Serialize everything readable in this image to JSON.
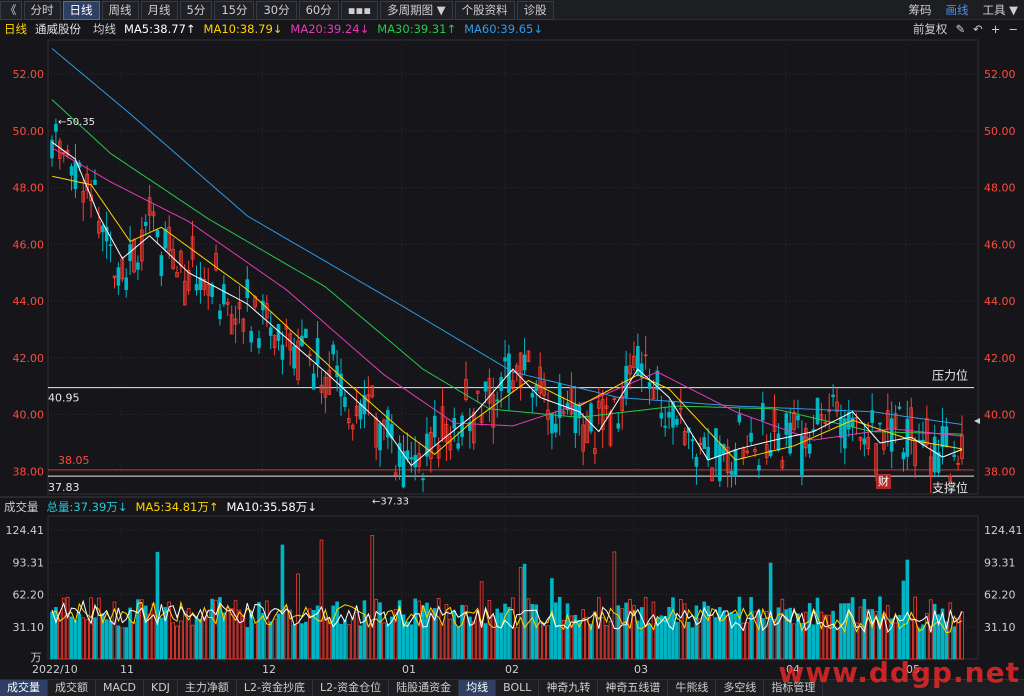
{
  "toolbar": {
    "back": "《",
    "tabs": [
      "分时",
      "日线",
      "周线",
      "月线",
      "5分",
      "15分",
      "30分",
      "60分",
      "▪▪▪",
      "多周期图 ▼",
      "个股资料",
      "诊股"
    ],
    "active_tab": 1,
    "right_items": [
      "筹码",
      "画线",
      "工具 ▼"
    ],
    "right_active": 1
  },
  "legend": {
    "period": "日线",
    "stock": "通威股份",
    "ma_label": "均线",
    "ma5": "MA5:38.77↑",
    "ma10": "MA10:38.79↓",
    "ma20": "MA20:39.24↓",
    "ma30": "MA30:39.31↑",
    "ma60": "MA60:39.65↓",
    "fq": "前复权",
    "icons": [
      "✎",
      "↶",
      "+",
      "−"
    ]
  },
  "volume_legend": {
    "title": "成交量",
    "total": "总量:37.39万↓",
    "ma5": "MA5:34.81万↑",
    "ma10": "MA10:35.58万↓"
  },
  "bottom_tabs": [
    "成交量",
    "成交额",
    "MACD",
    "KDJ",
    "主力净额",
    "L2-资金抄底",
    "L2-资金仓位",
    "陆股通资金",
    "均线",
    "BOLL",
    "神奇九转",
    "神奇五线谱",
    "牛熊线",
    "多空线",
    "指标管理"
  ],
  "bottom_active": [
    0,
    8
  ],
  "badge": "财",
  "watermark": "www.ddgp.net",
  "colors": {
    "up": "#ff3b30",
    "down": "#00b5c4",
    "ma5": "#ffffff",
    "ma10": "#ffd400",
    "ma20": "#e63ab7",
    "ma30": "#26c949",
    "ma60": "#2e9be8"
  },
  "chart_data": {
    "type": "candlestick",
    "price_axis": {
      "ticks": [
        38,
        40,
        42,
        44,
        46,
        48,
        50,
        52
      ],
      "labels": [
        "38.00",
        "40.00",
        "42.00",
        "44.00",
        "46.00",
        "48.00",
        "50.00",
        "52.00"
      ],
      "range": [
        37.2,
        53.2
      ]
    },
    "volume_axis": {
      "ticks": [
        31.1,
        62.2,
        93.31,
        124.41
      ],
      "labels": [
        "31.10",
        "62.20",
        "93.31",
        "124.41"
      ],
      "unit": "万"
    },
    "x_labels": [
      "2022/10",
      "11",
      "12",
      "01",
      "02",
      "03",
      "04",
      "05"
    ],
    "annotations": {
      "high": "50.35",
      "low": "37.33"
    },
    "hlines": [
      {
        "value": 40.95,
        "label": "40.95",
        "right_label": "压力位"
      },
      {
        "value": 38.05,
        "label": "38.05"
      },
      {
        "value": 37.83,
        "label": "37.83",
        "right_label": "支撑位"
      }
    ],
    "ma_anchors": {
      "ma60": [
        [
          0,
          52.9
        ],
        [
          20,
          50.6
        ],
        [
          50,
          47.0
        ],
        [
          90,
          43.8
        ],
        [
          118,
          41.5
        ],
        [
          145,
          40.6
        ],
        [
          175,
          40.3
        ],
        [
          210,
          40.1
        ],
        [
          233,
          39.65
        ]
      ],
      "ma30": [
        [
          0,
          51.1
        ],
        [
          15,
          49.2
        ],
        [
          40,
          46.9
        ],
        [
          70,
          44.5
        ],
        [
          95,
          41.6
        ],
        [
          112,
          40.2
        ],
        [
          135,
          39.9
        ],
        [
          160,
          40.3
        ],
        [
          185,
          40.2
        ],
        [
          210,
          39.4
        ],
        [
          233,
          39.31
        ]
      ],
      "ma20": [
        [
          0,
          49.4
        ],
        [
          15,
          48.2
        ],
        [
          35,
          46.8
        ],
        [
          60,
          44.4
        ],
        [
          85,
          41.4
        ],
        [
          103,
          39.7
        ],
        [
          118,
          39.6
        ],
        [
          138,
          40.5
        ],
        [
          155,
          41.5
        ],
        [
          175,
          40.1
        ],
        [
          195,
          39.1
        ],
        [
          215,
          39.5
        ],
        [
          233,
          39.24
        ]
      ],
      "ma10": [
        [
          0,
          48.4
        ],
        [
          10,
          48.1
        ],
        [
          20,
          46.1
        ],
        [
          28,
          46.6
        ],
        [
          50,
          44.4
        ],
        [
          75,
          41.2
        ],
        [
          90,
          39.4
        ],
        [
          98,
          38.6
        ],
        [
          108,
          39.8
        ],
        [
          122,
          41.2
        ],
        [
          135,
          40.3
        ],
        [
          150,
          41.4
        ],
        [
          158,
          40.9
        ],
        [
          175,
          38.4
        ],
        [
          190,
          38.9
        ],
        [
          205,
          39.8
        ],
        [
          220,
          39.1
        ],
        [
          233,
          38.79
        ]
      ],
      "ma5": [
        [
          0,
          49.6
        ],
        [
          6,
          49.0
        ],
        [
          12,
          47.0
        ],
        [
          18,
          45.5
        ],
        [
          25,
          46.3
        ],
        [
          35,
          45.0
        ],
        [
          50,
          43.9
        ],
        [
          70,
          41.5
        ],
        [
          85,
          39.6
        ],
        [
          92,
          38.2
        ],
        [
          98,
          38.9
        ],
        [
          108,
          40.0
        ],
        [
          118,
          41.6
        ],
        [
          125,
          40.6
        ],
        [
          135,
          40.1
        ],
        [
          140,
          39.4
        ],
        [
          150,
          41.6
        ],
        [
          158,
          40.6
        ],
        [
          168,
          38.4
        ],
        [
          176,
          38.8
        ],
        [
          185,
          39.1
        ],
        [
          195,
          39.4
        ],
        [
          205,
          40.1
        ],
        [
          212,
          39.0
        ],
        [
          220,
          39.2
        ],
        [
          228,
          38.5
        ],
        [
          233,
          38.77
        ]
      ]
    },
    "candles_note": "234 daily candles from 2022/10 to 2023/05",
    "candle_seed": [
      49.5,
      49.3,
      48.2,
      47.6,
      46.0,
      45.5,
      45.9,
      46.4,
      46.9,
      47.3,
      46.2,
      45.6,
      44.9,
      44.5,
      44.0,
      43.2,
      42.6,
      42.0,
      41.6,
      41.0,
      40.4,
      39.8,
      39.2,
      38.6,
      38.2,
      37.9,
      38.8,
      39.6,
      40.4,
      41.2,
      41.8,
      41.3,
      40.6,
      40.1,
      39.6,
      40.2,
      41.0,
      41.6,
      42.2,
      41.5,
      40.6,
      39.8,
      38.8,
      38.3,
      38.6,
      39.1,
      39.6,
      40.2,
      40.5,
      39.8,
      39.3,
      39.0,
      38.8,
      38.5,
      38.9,
      39.3,
      39.0,
      38.7
    ]
  }
}
